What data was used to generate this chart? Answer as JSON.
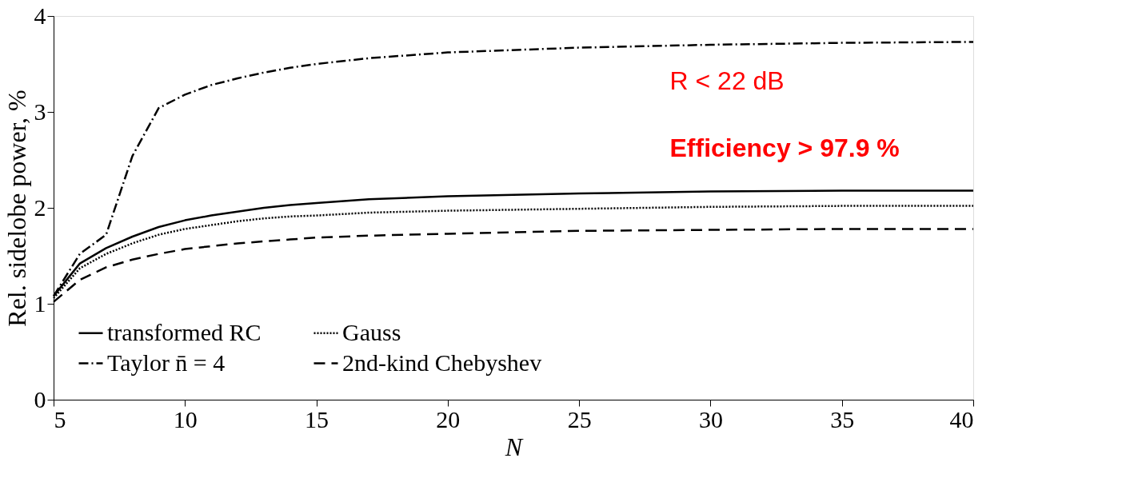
{
  "chart_data": {
    "type": "line",
    "xlabel": "N",
    "ylabel": "Rel. sidelobe power, %",
    "x": [
      5,
      6,
      7,
      8,
      9,
      10,
      11,
      12,
      13,
      14,
      15,
      17,
      20,
      25,
      30,
      35,
      40
    ],
    "series": [
      {
        "name": "transformed RC",
        "color": "#000000",
        "line_style": "solid",
        "values": [
          1.08,
          1.42,
          1.58,
          1.7,
          1.8,
          1.87,
          1.92,
          1.96,
          2.0,
          2.03,
          2.05,
          2.09,
          2.12,
          2.15,
          2.17,
          2.18,
          2.18
        ]
      },
      {
        "name": "Taylor n̄ = 4",
        "color": "#000000",
        "line_style": "dashdot",
        "values": [
          1.08,
          1.52,
          1.72,
          2.54,
          3.04,
          3.18,
          3.28,
          3.35,
          3.41,
          3.46,
          3.5,
          3.56,
          3.62,
          3.67,
          3.7,
          3.72,
          3.73
        ]
      },
      {
        "name": "Gauss",
        "color": "#000000",
        "line_style": "dotted",
        "values": [
          1.06,
          1.37,
          1.52,
          1.63,
          1.72,
          1.78,
          1.82,
          1.86,
          1.89,
          1.91,
          1.92,
          1.95,
          1.97,
          1.99,
          2.01,
          2.02,
          2.02
        ]
      },
      {
        "name": "2nd-kind Chebyshev",
        "color": "#000000",
        "line_style": "dashed",
        "values": [
          1.02,
          1.25,
          1.38,
          1.46,
          1.52,
          1.57,
          1.6,
          1.63,
          1.65,
          1.67,
          1.69,
          1.71,
          1.73,
          1.76,
          1.77,
          1.78,
          1.78
        ]
      }
    ],
    "xlim": [
      5,
      40
    ],
    "xticks": [
      5,
      10,
      15,
      20,
      25,
      30,
      35,
      40
    ],
    "ylim": [
      0,
      4
    ],
    "yticks": [
      0,
      1,
      2,
      3,
      4
    ],
    "grid": false,
    "legend": "bottom left",
    "annotations": [
      "R < 22 dB",
      "Efficiency > 97.9 %"
    ]
  }
}
